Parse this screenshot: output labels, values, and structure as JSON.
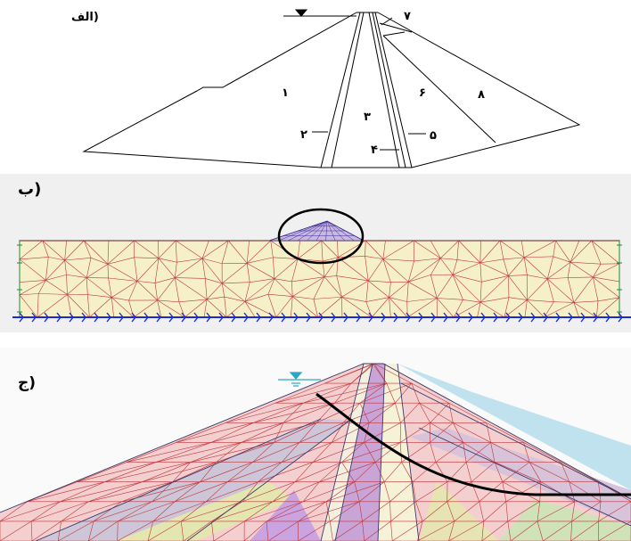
{
  "panels": {
    "a": {
      "label": "(الف"
    },
    "b": {
      "label": "(ب"
    },
    "c": {
      "label": "(ج"
    }
  },
  "zones": [
    "۱",
    "۲",
    "۳",
    "۴",
    "۵",
    "۶",
    "۷",
    "۸"
  ],
  "colors": {
    "outline": "#000000",
    "mesh_red": "#c0353a",
    "mesh_dark": "#2a2a7a",
    "support_blue": "#1a2bd6",
    "support_green": "#1c8a3a",
    "model_fill": "#f6f0c8",
    "phreatic": "#000000",
    "water_symbol": "#2aa6c8"
  },
  "icons": [
    "water-level-icon",
    "fixity-arrow-icon",
    "highlight-circle-icon"
  ]
}
